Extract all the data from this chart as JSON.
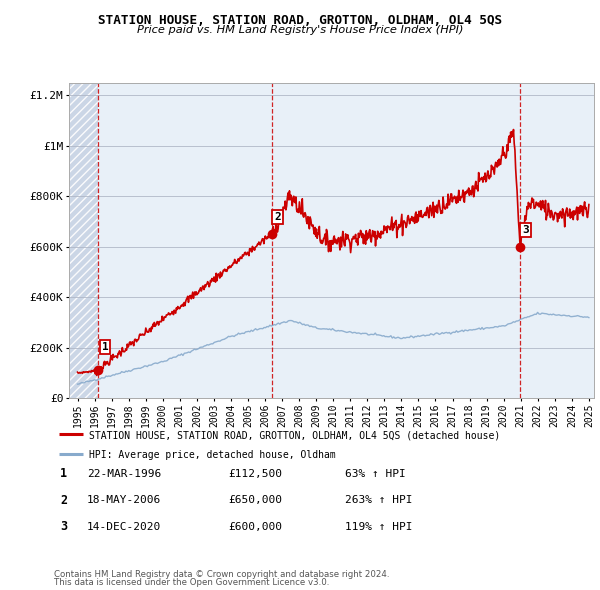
{
  "title": "STATION HOUSE, STATION ROAD, GROTTON, OLDHAM, OL4 5QS",
  "subtitle": "Price paid vs. HM Land Registry's House Price Index (HPI)",
  "legend_line1": "STATION HOUSE, STATION ROAD, GROTTON, OLDHAM, OL4 5QS (detached house)",
  "legend_line2": "HPI: Average price, detached house, Oldham",
  "footer1": "Contains HM Land Registry data © Crown copyright and database right 2024.",
  "footer2": "This data is licensed under the Open Government Licence v3.0.",
  "sales": [
    {
      "num": 1,
      "date": "22-MAR-1996",
      "price": 112500,
      "pct": "63%",
      "year": 1996.22
    },
    {
      "num": 2,
      "date": "18-MAY-2006",
      "price": 650000,
      "pct": "263%",
      "year": 2006.38
    },
    {
      "num": 3,
      "date": "14-DEC-2020",
      "price": 600000,
      "pct": "119%",
      "year": 2020.95
    }
  ],
  "sale_dashed_color": "#cc0000",
  "house_line_color": "#cc0000",
  "hpi_line_color": "#88aacc",
  "marker_color": "#cc0000",
  "ylim": [
    0,
    1250000
  ],
  "xlim": [
    1994.5,
    2025.3
  ],
  "yticks": [
    0,
    200000,
    400000,
    600000,
    800000,
    1000000,
    1200000
  ],
  "ytick_labels": [
    "£0",
    "£200K",
    "£400K",
    "£600K",
    "£800K",
    "£1M",
    "£1.2M"
  ],
  "xticks": [
    1995,
    1996,
    1997,
    1998,
    1999,
    2000,
    2001,
    2002,
    2003,
    2004,
    2005,
    2006,
    2007,
    2008,
    2009,
    2010,
    2011,
    2012,
    2013,
    2014,
    2015,
    2016,
    2017,
    2018,
    2019,
    2020,
    2021,
    2022,
    2023,
    2024,
    2025
  ],
  "plot_bg": "#e8f0f8",
  "hatch_end": 1996.22
}
